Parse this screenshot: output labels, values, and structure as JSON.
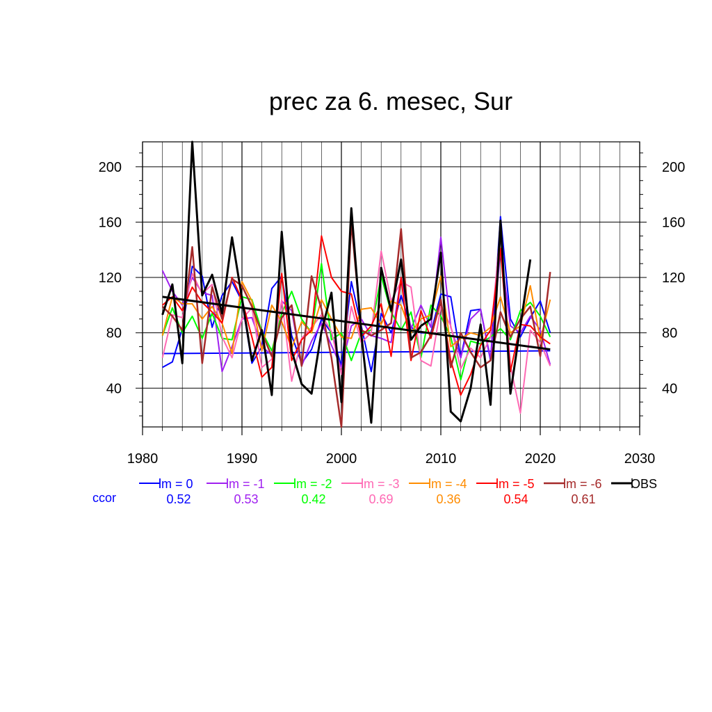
{
  "chart_data": {
    "type": "line",
    "title": "prec za 6. mesec, Sur",
    "xlim": [
      1980,
      2030
    ],
    "ylim": [
      12,
      218
    ],
    "x_ticks": [
      1980,
      1990,
      2000,
      2010,
      2020,
      2030
    ],
    "y_ticks": [
      40,
      80,
      120,
      160,
      200
    ],
    "grid": true,
    "legend_position": "bottom",
    "ccor_label": "ccor",
    "x": [
      1982,
      1983,
      1984,
      1985,
      1986,
      1987,
      1988,
      1989,
      1990,
      1991,
      1992,
      1993,
      1994,
      1995,
      1996,
      1997,
      1998,
      1999,
      2000,
      2001,
      2002,
      2003,
      2004,
      2005,
      2006,
      2007,
      2008,
      2009,
      2010,
      2011,
      2012,
      2013,
      2014,
      2015,
      2016,
      2017,
      2018,
      2019,
      2020,
      2021
    ],
    "series": [
      {
        "name": "lm = 0",
        "color": "#0000ff",
        "ccor": "0.52",
        "width": 2,
        "values": [
          55,
          59,
          83,
          128,
          121,
          84,
          107,
          117,
          103,
          58,
          70,
          112,
          121,
          78,
          58,
          68,
          90,
          80,
          56,
          117,
          85,
          52,
          94,
          80,
          107,
          84,
          80,
          80,
          108,
          106,
          62,
          96,
          97,
          60,
          164,
          90,
          77,
          91,
          103,
          80
        ],
        "trend": [
          65,
          67
        ]
      },
      {
        "name": "lm = -1",
        "color": "#a020f0",
        "ccor": "0.53",
        "width": 2,
        "values": [
          125,
          110,
          100,
          120,
          109,
          107,
          52,
          70,
          90,
          91,
          70,
          64,
          103,
          96,
          56,
          74,
          87,
          71,
          55,
          85,
          90,
          78,
          76,
          73,
          120,
          83,
          100,
          84,
          149,
          84,
          62,
          90,
          97,
          61,
          140,
          85,
          80,
          92,
          82,
          57
        ]
      },
      {
        "name": "lm = -2",
        "color": "#00ff00",
        "ccor": "0.42",
        "width": 2,
        "values": [
          78,
          98,
          80,
          92,
          76,
          94,
          76,
          75,
          106,
          104,
          81,
          67,
          94,
          110,
          90,
          80,
          130,
          75,
          80,
          60,
          80,
          82,
          121,
          95,
          82,
          95,
          62,
          100,
          92,
          77,
          46,
          74,
          72,
          77,
          83,
          75,
          96,
          102,
          92,
          77
        ]
      },
      {
        "name": "lm = -3",
        "color": "#ff69b4",
        "ccor": "0.69",
        "width": 2,
        "values": [
          62,
          93,
          91,
          123,
          108,
          115,
          77,
          62,
          90,
          98,
          55,
          61,
          104,
          45,
          76,
          84,
          93,
          81,
          50,
          99,
          73,
          80,
          139,
          103,
          117,
          113,
          60,
          56,
          99,
          85,
          54,
          69,
          62,
          77,
          155,
          56,
          22,
          82,
          73,
          56
        ]
      },
      {
        "name": "lm = -4",
        "color": "#ff8c00",
        "ccor": "0.36",
        "width": 2,
        "values": [
          78,
          106,
          101,
          101,
          90,
          99,
          87,
          65,
          117,
          103,
          67,
          100,
          88,
          69,
          88,
          80,
          104,
          90,
          77,
          76,
          97,
          98,
          86,
          103,
          100,
          80,
          90,
          93,
          121,
          70,
          76,
          80,
          78,
          84,
          106,
          80,
          85,
          114,
          75,
          104
        ]
      },
      {
        "name": "lm = -5",
        "color": "#ff0000",
        "ccor": "0.54",
        "width": 2,
        "values": [
          100,
          106,
          96,
          113,
          102,
          95,
          87,
          120,
          104,
          77,
          48,
          55,
          123,
          60,
          75,
          82,
          150,
          120,
          110,
          108,
          77,
          85,
          101,
          63,
          120,
          60,
          96,
          76,
          103,
          60,
          35,
          50,
          71,
          82,
          141,
          52,
          86,
          85,
          77,
          72
        ]
      },
      {
        "name": "lm = -6",
        "color": "#a52a2a",
        "ccor": "0.61",
        "width": 2.5,
        "values": [
          99,
          92,
          82,
          142,
          58,
          113,
          90,
          119,
          114,
          99,
          80,
          63,
          91,
          100,
          56,
          121,
          97,
          62,
          12,
          160,
          82,
          78,
          82,
          87,
          155,
          62,
          66,
          78,
          104,
          55,
          80,
          66,
          55,
          60,
          95,
          77,
          90,
          99,
          63,
          124
        ]
      },
      {
        "name": "OBS",
        "color": "#000000",
        "ccor": "",
        "width": 3,
        "values": [
          93,
          115,
          58,
          218,
          107,
          122,
          94,
          149,
          105,
          60,
          82,
          35,
          153,
          67,
          43,
          36,
          81,
          109,
          30,
          170,
          79,
          15,
          127,
          96,
          133,
          75,
          85,
          90,
          138,
          23,
          16,
          40,
          86,
          28,
          161,
          36,
          85,
          133,
          null,
          null
        ],
        "trend": [
          106,
          68
        ]
      }
    ]
  }
}
